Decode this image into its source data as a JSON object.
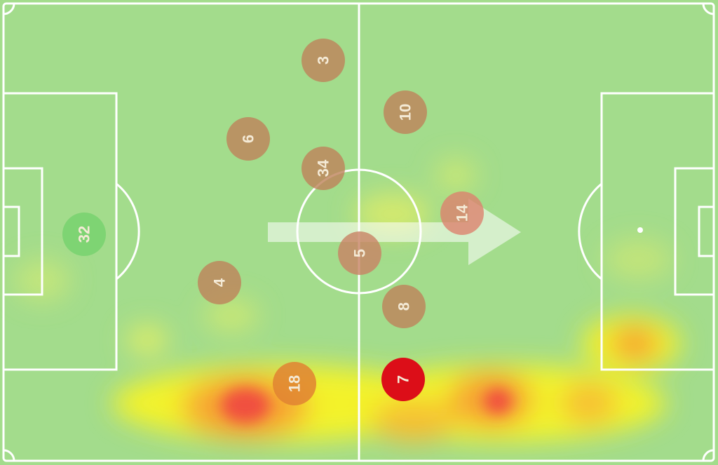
{
  "players": [
    {
      "number": "32"
    },
    {
      "number": "3"
    },
    {
      "number": "6"
    },
    {
      "number": "34"
    },
    {
      "number": "10"
    },
    {
      "number": "14"
    },
    {
      "number": "5"
    },
    {
      "number": "4"
    },
    {
      "number": "8"
    },
    {
      "number": "18"
    },
    {
      "number": "7"
    }
  ]
}
